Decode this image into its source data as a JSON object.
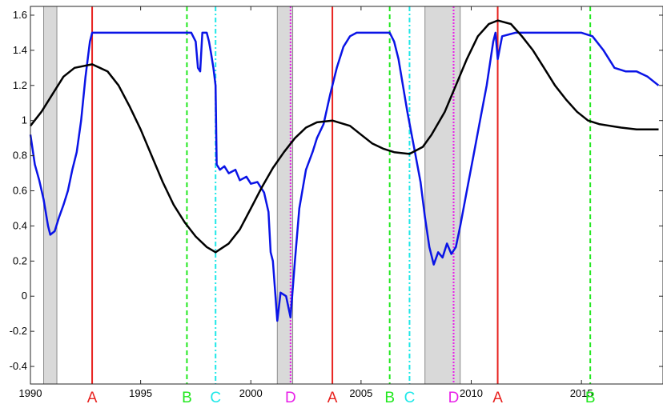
{
  "chart_data": {
    "type": "line",
    "xlim": [
      1990,
      2018.7
    ],
    "ylim": [
      -0.5,
      1.65
    ],
    "x_ticks": [
      1990,
      1995,
      2000,
      2005,
      2010,
      2015
    ],
    "y_ticks": [
      -0.4,
      -0.2,
      0,
      0.2,
      0.4,
      0.6,
      0.8,
      1,
      1.2,
      1.4,
      1.6
    ],
    "y_tick_labels": [
      "-0.4",
      "-0.2",
      "0",
      "0.2",
      "0.4",
      "0.6",
      "0.8",
      "1",
      "1.2",
      "1.4",
      "1.6"
    ],
    "recession_bands": [
      {
        "start": 1990.6,
        "end": 1991.2
      },
      {
        "start": 2001.2,
        "end": 2001.9
      },
      {
        "start": 2007.9,
        "end": 2009.5
      }
    ],
    "phase_markers": [
      {
        "label": "A",
        "x": 1992.8,
        "color": "#e8221f",
        "style": "solid"
      },
      {
        "label": "B",
        "x": 1997.1,
        "color": "#22e81f",
        "style": "dashed"
      },
      {
        "label": "C",
        "x": 1998.4,
        "color": "#1fe8e8",
        "style": "dashdot"
      },
      {
        "label": "D",
        "x": 2001.8,
        "color": "#e81fe8",
        "style": "dotted"
      },
      {
        "label": "A",
        "x": 2003.7,
        "color": "#e8221f",
        "style": "solid"
      },
      {
        "label": "B",
        "x": 2006.3,
        "color": "#22e81f",
        "style": "dashed"
      },
      {
        "label": "C",
        "x": 2007.2,
        "color": "#1fe8e8",
        "style": "dashdot"
      },
      {
        "label": "D",
        "x": 2009.2,
        "color": "#e81fe8",
        "style": "dotted"
      },
      {
        "label": "A",
        "x": 2011.2,
        "color": "#e8221f",
        "style": "solid"
      },
      {
        "label": "B",
        "x": 2015.4,
        "color": "#22e81f",
        "style": "dashed"
      }
    ],
    "series": [
      {
        "color": "#0a14e6",
        "points": [
          [
            1990.0,
            0.92
          ],
          [
            1990.2,
            0.75
          ],
          [
            1990.4,
            0.66
          ],
          [
            1990.6,
            0.55
          ],
          [
            1990.8,
            0.4
          ],
          [
            1990.9,
            0.35
          ],
          [
            1991.1,
            0.37
          ],
          [
            1991.3,
            0.45
          ],
          [
            1991.5,
            0.52
          ],
          [
            1991.7,
            0.6
          ],
          [
            1991.9,
            0.72
          ],
          [
            1992.1,
            0.82
          ],
          [
            1992.3,
            1.0
          ],
          [
            1992.5,
            1.25
          ],
          [
            1992.7,
            1.45
          ],
          [
            1992.8,
            1.5
          ],
          [
            1993.5,
            1.5
          ],
          [
            1995.0,
            1.5
          ],
          [
            1996.5,
            1.5
          ],
          [
            1997.3,
            1.5
          ],
          [
            1997.5,
            1.45
          ],
          [
            1997.6,
            1.3
          ],
          [
            1997.7,
            1.28
          ],
          [
            1997.8,
            1.5
          ],
          [
            1998.0,
            1.5
          ],
          [
            1998.1,
            1.45
          ],
          [
            1998.2,
            1.38
          ],
          [
            1998.3,
            1.3
          ],
          [
            1998.4,
            1.2
          ],
          [
            1998.45,
            0.75
          ],
          [
            1998.6,
            0.72
          ],
          [
            1998.8,
            0.74
          ],
          [
            1999.0,
            0.7
          ],
          [
            1999.3,
            0.72
          ],
          [
            1999.5,
            0.66
          ],
          [
            1999.8,
            0.68
          ],
          [
            2000.0,
            0.64
          ],
          [
            2000.3,
            0.65
          ],
          [
            2000.6,
            0.59
          ],
          [
            2000.8,
            0.48
          ],
          [
            2000.9,
            0.25
          ],
          [
            2001.0,
            0.2
          ],
          [
            2001.2,
            -0.14
          ],
          [
            2001.35,
            0.02
          ],
          [
            2001.6,
            0.0
          ],
          [
            2001.8,
            -0.12
          ],
          [
            2002.0,
            0.2
          ],
          [
            2002.2,
            0.5
          ],
          [
            2002.5,
            0.72
          ],
          [
            2002.8,
            0.82
          ],
          [
            2003.0,
            0.9
          ],
          [
            2003.3,
            0.98
          ],
          [
            2003.6,
            1.15
          ],
          [
            2003.9,
            1.3
          ],
          [
            2004.2,
            1.42
          ],
          [
            2004.5,
            1.48
          ],
          [
            2004.8,
            1.5
          ],
          [
            2005.5,
            1.5
          ],
          [
            2006.3,
            1.5
          ],
          [
            2006.5,
            1.45
          ],
          [
            2006.7,
            1.35
          ],
          [
            2006.9,
            1.2
          ],
          [
            2007.1,
            1.05
          ],
          [
            2007.4,
            0.85
          ],
          [
            2007.7,
            0.65
          ],
          [
            2007.9,
            0.45
          ],
          [
            2008.1,
            0.28
          ],
          [
            2008.3,
            0.18
          ],
          [
            2008.5,
            0.25
          ],
          [
            2008.7,
            0.22
          ],
          [
            2008.9,
            0.3
          ],
          [
            2009.1,
            0.24
          ],
          [
            2009.3,
            0.28
          ],
          [
            2009.5,
            0.4
          ],
          [
            2009.8,
            0.6
          ],
          [
            2010.1,
            0.8
          ],
          [
            2010.4,
            1.0
          ],
          [
            2010.7,
            1.2
          ],
          [
            2011.0,
            1.45
          ],
          [
            2011.1,
            1.5
          ],
          [
            2011.2,
            1.35
          ],
          [
            2011.4,
            1.48
          ],
          [
            2012.0,
            1.5
          ],
          [
            2013.0,
            1.5
          ],
          [
            2014.0,
            1.5
          ],
          [
            2015.0,
            1.5
          ],
          [
            2015.5,
            1.48
          ],
          [
            2016.0,
            1.4
          ],
          [
            2016.5,
            1.3
          ],
          [
            2017.0,
            1.28
          ],
          [
            2017.5,
            1.28
          ],
          [
            2018.0,
            1.25
          ],
          [
            2018.5,
            1.2
          ]
        ]
      },
      {
        "color": "#000000",
        "points": [
          [
            1990.0,
            0.97
          ],
          [
            1990.5,
            1.05
          ],
          [
            1991.0,
            1.15
          ],
          [
            1991.5,
            1.25
          ],
          [
            1992.0,
            1.3
          ],
          [
            1992.8,
            1.32
          ],
          [
            1993.5,
            1.28
          ],
          [
            1994.0,
            1.2
          ],
          [
            1994.5,
            1.08
          ],
          [
            1995.0,
            0.95
          ],
          [
            1995.5,
            0.8
          ],
          [
            1996.0,
            0.65
          ],
          [
            1996.5,
            0.52
          ],
          [
            1997.0,
            0.42
          ],
          [
            1997.5,
            0.34
          ],
          [
            1998.0,
            0.28
          ],
          [
            1998.4,
            0.25
          ],
          [
            1999.0,
            0.3
          ],
          [
            1999.5,
            0.38
          ],
          [
            2000.0,
            0.5
          ],
          [
            2000.5,
            0.62
          ],
          [
            2001.0,
            0.73
          ],
          [
            2001.5,
            0.82
          ],
          [
            2002.0,
            0.9
          ],
          [
            2002.5,
            0.96
          ],
          [
            2003.0,
            0.99
          ],
          [
            2003.7,
            1.0
          ],
          [
            2004.5,
            0.97
          ],
          [
            2005.0,
            0.92
          ],
          [
            2005.5,
            0.87
          ],
          [
            2006.0,
            0.84
          ],
          [
            2006.5,
            0.82
          ],
          [
            2007.2,
            0.81
          ],
          [
            2007.8,
            0.85
          ],
          [
            2008.2,
            0.92
          ],
          [
            2008.8,
            1.05
          ],
          [
            2009.3,
            1.2
          ],
          [
            2009.8,
            1.35
          ],
          [
            2010.3,
            1.48
          ],
          [
            2010.8,
            1.55
          ],
          [
            2011.2,
            1.57
          ],
          [
            2011.8,
            1.55
          ],
          [
            2012.3,
            1.48
          ],
          [
            2012.8,
            1.4
          ],
          [
            2013.3,
            1.3
          ],
          [
            2013.8,
            1.2
          ],
          [
            2014.3,
            1.12
          ],
          [
            2014.8,
            1.05
          ],
          [
            2015.3,
            1.0
          ],
          [
            2015.8,
            0.98
          ],
          [
            2016.3,
            0.97
          ],
          [
            2016.8,
            0.96
          ],
          [
            2017.5,
            0.95
          ],
          [
            2018.5,
            0.95
          ]
        ]
      }
    ]
  }
}
